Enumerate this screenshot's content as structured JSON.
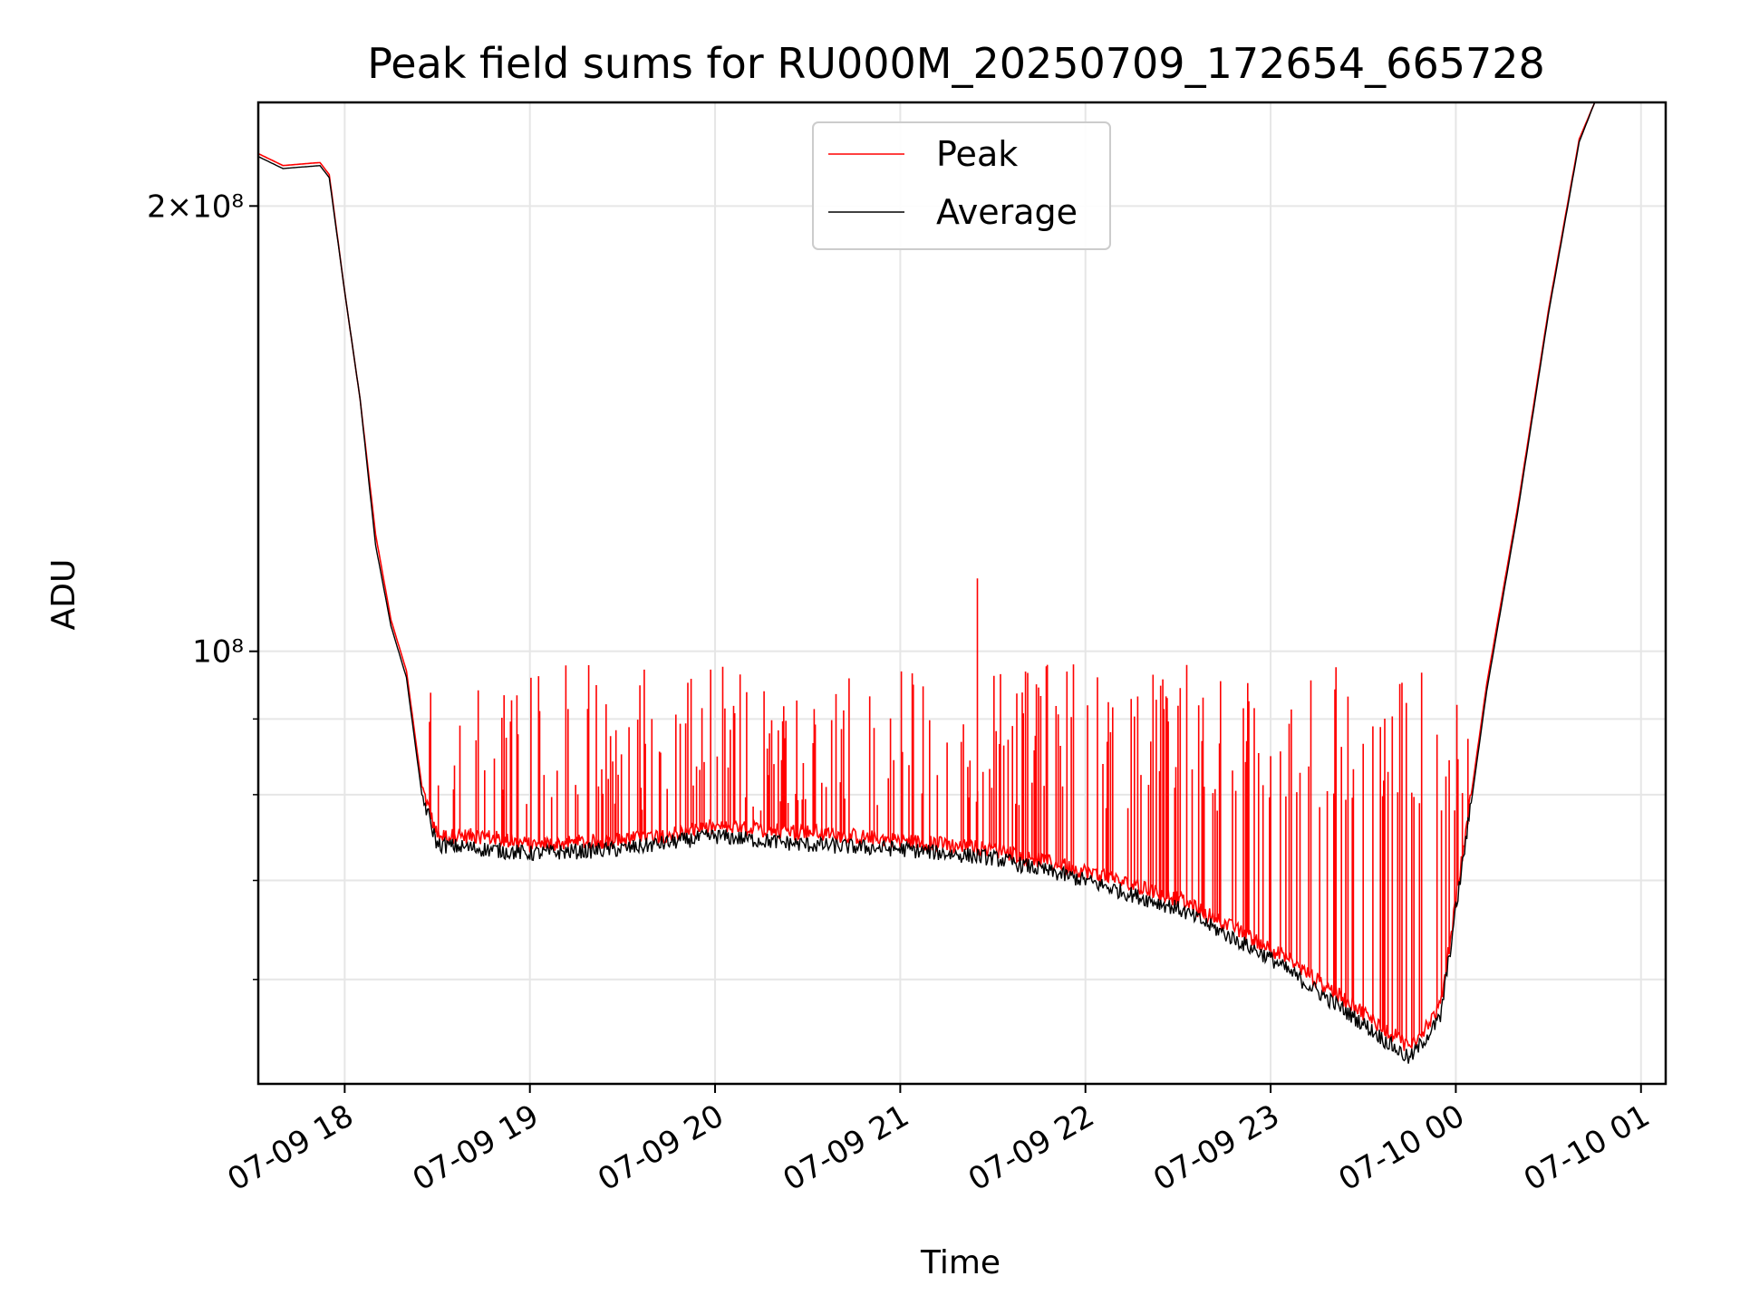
{
  "chart_data": {
    "type": "line",
    "title": "Peak field sums for RU000M_20250709_172654_665728",
    "xlabel": "Time",
    "ylabel": "ADU",
    "yscale": "log",
    "xlim": [
      "2025-07-09 17:32",
      "2025-07-10 01:08"
    ],
    "ylim": [
      51000000,
      235000000
    ],
    "x_ticks": [
      "07-09 18",
      "07-09 19",
      "07-09 20",
      "07-09 21",
      "07-09 22",
      "07-09 23",
      "07-10 00",
      "07-10 01"
    ],
    "y_major_ticks": [
      {
        "value": 100000000,
        "label": "10⁸"
      },
      {
        "value": 200000000,
        "label": "2×10⁸"
      }
    ],
    "y_minor_ticks": [
      60000000,
      70000000,
      80000000,
      90000000
    ],
    "grid": true,
    "legend": {
      "placement": "upper center"
    },
    "series": [
      {
        "name": "Peak",
        "color": "#ff0000",
        "style": "baseline slightly above Average with frequent spikes up to roughly 75M-100M between 18:25 and 00:05; isolated spike near 21:25 at about 112M",
        "points": [
          [
            "2025-07-09 17:32",
            217000000
          ],
          [
            "2025-07-09 17:40",
            213000000
          ],
          [
            "2025-07-09 17:52",
            214000000
          ],
          [
            "2025-07-09 17:55",
            210000000
          ],
          [
            "2025-07-09 18:00",
            175000000
          ],
          [
            "2025-07-09 18:05",
            148000000
          ],
          [
            "2025-07-09 18:10",
            120000000
          ],
          [
            "2025-07-09 18:15",
            105000000
          ],
          [
            "2025-07-09 18:20",
            97000000
          ],
          [
            "2025-07-09 18:25",
            81000000
          ],
          [
            "2025-07-09 18:30",
            75000000
          ],
          [
            "2025-07-09 18:45",
            75000000
          ],
          [
            "2025-07-09 19:00",
            74000000
          ],
          [
            "2025-07-09 19:30",
            74500000
          ],
          [
            "2025-07-09 20:00",
            76000000
          ],
          [
            "2025-07-09 20:30",
            75500000
          ],
          [
            "2025-07-09 21:00",
            74500000
          ],
          [
            "2025-07-09 21:30",
            73500000
          ],
          [
            "2025-07-09 22:00",
            71000000
          ],
          [
            "2025-07-09 22:30",
            68000000
          ],
          [
            "2025-07-09 23:00",
            63000000
          ],
          [
            "2025-07-09 23:30",
            57000000
          ],
          [
            "2025-07-09 23:45",
            54000000
          ],
          [
            "2025-07-09 23:55",
            57500000
          ],
          [
            "2025-07-10 00:05",
            80000000
          ],
          [
            "2025-07-10 00:10",
            95000000
          ],
          [
            "2025-07-10 00:20",
            125000000
          ],
          [
            "2025-07-10 00:30",
            170000000
          ],
          [
            "2025-07-10 00:40",
            222000000
          ],
          [
            "2025-07-10 00:45",
            235000000
          ]
        ]
      },
      {
        "name": "Average",
        "color": "#000000",
        "points": [
          [
            "2025-07-09 17:32",
            216000000
          ],
          [
            "2025-07-09 17:40",
            212000000
          ],
          [
            "2025-07-09 17:52",
            213000000
          ],
          [
            "2025-07-09 17:55",
            209000000
          ],
          [
            "2025-07-09 18:00",
            175000000
          ],
          [
            "2025-07-09 18:05",
            148000000
          ],
          [
            "2025-07-09 18:10",
            118000000
          ],
          [
            "2025-07-09 18:15",
            104000000
          ],
          [
            "2025-07-09 18:20",
            96000000
          ],
          [
            "2025-07-09 18:25",
            80000000
          ],
          [
            "2025-07-09 18:30",
            74000000
          ],
          [
            "2025-07-09 18:45",
            73500000
          ],
          [
            "2025-07-09 19:00",
            73000000
          ],
          [
            "2025-07-09 19:30",
            73500000
          ],
          [
            "2025-07-09 20:00",
            75000000
          ],
          [
            "2025-07-09 20:30",
            74000000
          ],
          [
            "2025-07-09 21:00",
            73500000
          ],
          [
            "2025-07-09 21:30",
            72500000
          ],
          [
            "2025-07-09 22:00",
            70000000
          ],
          [
            "2025-07-09 22:30",
            67000000
          ],
          [
            "2025-07-09 23:00",
            62000000
          ],
          [
            "2025-07-09 23:30",
            56000000
          ],
          [
            "2025-07-09 23:45",
            53000000
          ],
          [
            "2025-07-09 23:55",
            56500000
          ],
          [
            "2025-07-10 00:05",
            79000000
          ],
          [
            "2025-07-10 00:10",
            94000000
          ],
          [
            "2025-07-10 00:20",
            124000000
          ],
          [
            "2025-07-10 00:30",
            169000000
          ],
          [
            "2025-07-10 00:40",
            221000000
          ],
          [
            "2025-07-10 00:45",
            235000000
          ]
        ]
      }
    ]
  }
}
